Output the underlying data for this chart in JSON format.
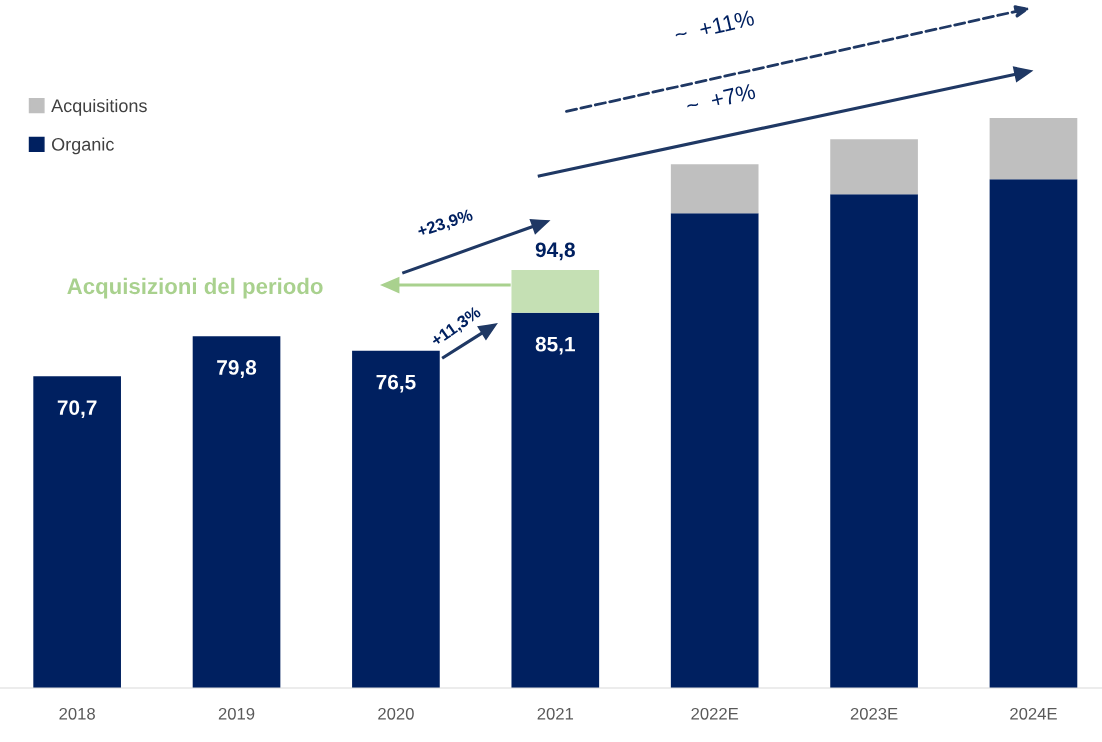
{
  "chart_data": {
    "type": "bar",
    "stacked": true,
    "categories": [
      "2018",
      "2019",
      "2020",
      "2021",
      "2022E",
      "2023E",
      "2024E"
    ],
    "series": [
      {
        "name": "Organic",
        "color": "#002060",
        "values": [
          70.7,
          79.8,
          76.5,
          85.1,
          107.7,
          112.0,
          115.4
        ],
        "value_labels": [
          "70,7",
          "79,8",
          "76,5",
          "85,1",
          null,
          null,
          null
        ]
      },
      {
        "name": "Acquisitions",
        "color": "#bfbfbf",
        "colors": [
          "#bfbfbf",
          "#bfbfbf",
          "#bfbfbf",
          "#c5e0b4",
          "#bfbfbf",
          "#bfbfbf",
          "#bfbfbf"
        ],
        "values": [
          null,
          null,
          null,
          9.7,
          11.1,
          12.5,
          13.9
        ]
      }
    ],
    "totals": [
      null,
      null,
      null,
      "94,8",
      null,
      null,
      null
    ],
    "tick_labels": "x",
    "legend": "top left",
    "grid": false,
    "annotations": [
      "~  +11%",
      "~  +7%",
      "+23,9%",
      "+11,3%",
      "Acquisizioni del periodo"
    ]
  }
}
